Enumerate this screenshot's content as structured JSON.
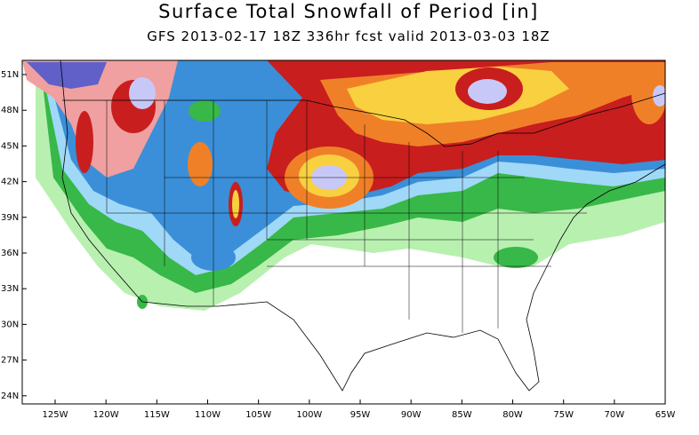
{
  "header": {
    "title": "Surface Total Snowfall of Period [in]",
    "subtitle": "GFS 2013-02-17 18Z 336hr fcst valid 2013-03-03 18Z"
  },
  "map": {
    "lat_labels": [
      "51N",
      "48N",
      "45N",
      "42N",
      "39N",
      "36N",
      "33N",
      "30N",
      "27N",
      "24N"
    ],
    "lon_labels": [
      "125W",
      "120W",
      "115W",
      "110W",
      "105W",
      "100W",
      "95W",
      "90W",
      "85W",
      "80W",
      "75W",
      "70W",
      "65W"
    ]
  }
}
